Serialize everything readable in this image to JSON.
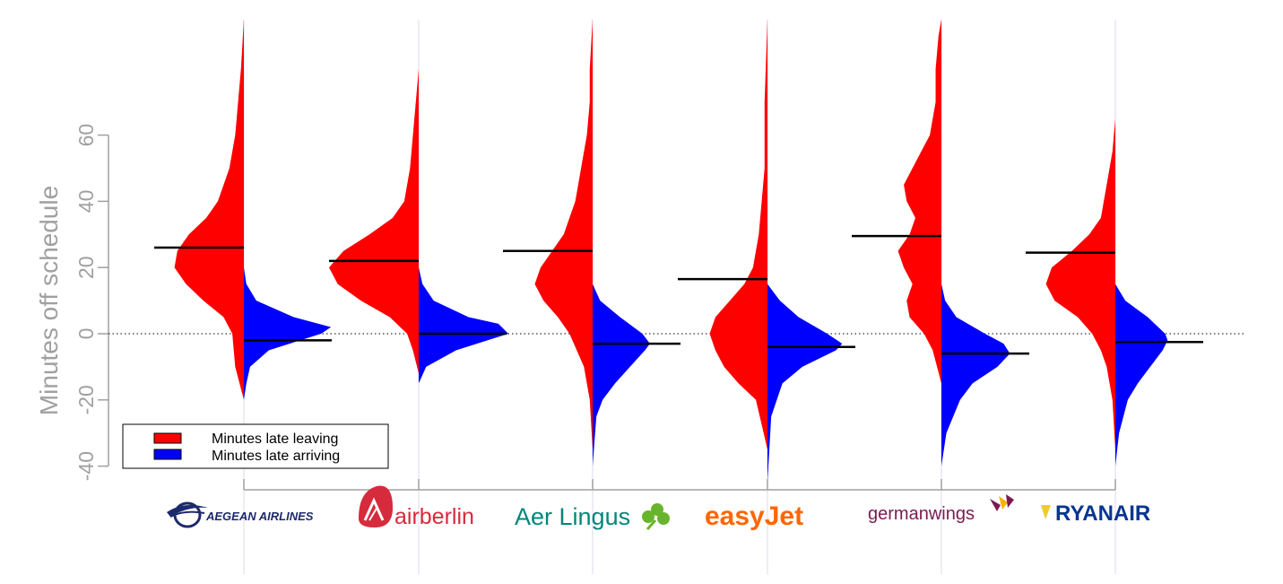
{
  "chart_data": {
    "type": "violin",
    "title": "",
    "xlabel": "",
    "ylabel": "Minutes off schedule",
    "ylim": [
      -40,
      95
    ],
    "yticks": [
      -40,
      -20,
      0,
      20,
      40,
      60
    ],
    "reference_line": 0,
    "categories": [
      "AEGEAN AIRLINES",
      "airberlin",
      "Aer Lingus",
      "easyJet",
      "germanwings",
      "RYANAIR"
    ],
    "series": [
      {
        "name": "Minutes late leaving",
        "color": "#ff0000",
        "side": "left",
        "means": [
          26,
          22,
          25,
          16.5,
          29.5,
          24.5
        ],
        "density": [
          [
            [
              -20,
              0
            ],
            [
              -10,
              3
            ],
            [
              0,
              4
            ],
            [
              5,
              7
            ],
            [
              10,
              14
            ],
            [
              15,
              20
            ],
            [
              20,
              24
            ],
            [
              25,
              23
            ],
            [
              30,
              19
            ],
            [
              35,
              13
            ],
            [
              40,
              9
            ],
            [
              45,
              7
            ],
            [
              50,
              5
            ],
            [
              60,
              3
            ],
            [
              70,
              2
            ],
            [
              80,
              1
            ],
            [
              95,
              0
            ]
          ],
          [
            [
              -12,
              0
            ],
            [
              -5,
              2
            ],
            [
              0,
              4
            ],
            [
              5,
              10
            ],
            [
              10,
              20
            ],
            [
              15,
              28
            ],
            [
              20,
              31
            ],
            [
              25,
              26
            ],
            [
              30,
              17
            ],
            [
              35,
              9
            ],
            [
              40,
              5
            ],
            [
              50,
              3
            ],
            [
              60,
              2
            ],
            [
              70,
              1
            ],
            [
              80,
              0
            ]
          ],
          [
            [
              -35,
              0
            ],
            [
              -20,
              1
            ],
            [
              -10,
              3
            ],
            [
              0,
              8
            ],
            [
              5,
              12
            ],
            [
              10,
              17
            ],
            [
              15,
              20
            ],
            [
              20,
              18
            ],
            [
              25,
              14
            ],
            [
              30,
              10
            ],
            [
              40,
              6
            ],
            [
              50,
              4
            ],
            [
              60,
              2
            ],
            [
              70,
              1
            ],
            [
              80,
              1
            ],
            [
              95,
              0
            ]
          ],
          [
            [
              -35,
              0
            ],
            [
              -20,
              4
            ],
            [
              -15,
              10
            ],
            [
              -10,
              15
            ],
            [
              -5,
              18
            ],
            [
              0,
              20
            ],
            [
              5,
              18
            ],
            [
              10,
              13
            ],
            [
              15,
              8
            ],
            [
              20,
              5
            ],
            [
              30,
              3
            ],
            [
              40,
              2
            ],
            [
              50,
              1
            ],
            [
              70,
              1
            ],
            [
              95,
              0
            ]
          ],
          [
            [
              -15,
              0
            ],
            [
              -5,
              3
            ],
            [
              0,
              6
            ],
            [
              5,
              11
            ],
            [
              10,
              12
            ],
            [
              15,
              10
            ],
            [
              20,
              13
            ],
            [
              25,
              15
            ],
            [
              30,
              11
            ],
            [
              35,
              9
            ],
            [
              40,
              12
            ],
            [
              45,
              13
            ],
            [
              50,
              10
            ],
            [
              55,
              7
            ],
            [
              60,
              4
            ],
            [
              70,
              2
            ],
            [
              80,
              2
            ],
            [
              90,
              1
            ],
            [
              95,
              0
            ]
          ],
          [
            [
              -35,
              0
            ],
            [
              -20,
              1
            ],
            [
              -10,
              3
            ],
            [
              -5,
              5
            ],
            [
              0,
              8
            ],
            [
              5,
              13
            ],
            [
              10,
              21
            ],
            [
              15,
              24
            ],
            [
              20,
              22
            ],
            [
              25,
              15
            ],
            [
              30,
              9
            ],
            [
              35,
              5
            ],
            [
              45,
              3
            ],
            [
              55,
              1
            ],
            [
              65,
              0
            ]
          ]
        ]
      },
      {
        "name": "Minutes late arriving",
        "color": "#0000ff",
        "side": "right",
        "means": [
          -2,
          0,
          -3,
          -4,
          -6,
          -2.5
        ],
        "density": [
          [
            [
              -20,
              0
            ],
            [
              -15,
              2
            ],
            [
              -10,
              5
            ],
            [
              -5,
              20
            ],
            [
              0,
              62
            ],
            [
              2,
              70
            ],
            [
              5,
              40
            ],
            [
              10,
              10
            ],
            [
              15,
              2
            ],
            [
              20,
              0
            ]
          ],
          [
            [
              -15,
              0
            ],
            [
              -10,
              6
            ],
            [
              -5,
              30
            ],
            [
              0,
              72
            ],
            [
              3,
              64
            ],
            [
              5,
              40
            ],
            [
              10,
              12
            ],
            [
              15,
              3
            ],
            [
              20,
              0
            ]
          ],
          [
            [
              -40,
              0
            ],
            [
              -25,
              3
            ],
            [
              -20,
              8
            ],
            [
              -15,
              18
            ],
            [
              -10,
              30
            ],
            [
              -5,
              42
            ],
            [
              -3,
              46
            ],
            [
              0,
              40
            ],
            [
              5,
              22
            ],
            [
              10,
              6
            ],
            [
              15,
              0
            ]
          ],
          [
            [
              -45,
              0
            ],
            [
              -25,
              3
            ],
            [
              -15,
              12
            ],
            [
              -10,
              28
            ],
            [
              -5,
              55
            ],
            [
              -3,
              60
            ],
            [
              0,
              48
            ],
            [
              5,
              25
            ],
            [
              10,
              10
            ],
            [
              15,
              0
            ]
          ],
          [
            [
              -40,
              0
            ],
            [
              -30,
              4
            ],
            [
              -20,
              15
            ],
            [
              -15,
              25
            ],
            [
              -10,
              45
            ],
            [
              -6,
              55
            ],
            [
              -3,
              50
            ],
            [
              0,
              35
            ],
            [
              5,
              12
            ],
            [
              10,
              3
            ],
            [
              15,
              0
            ]
          ],
          [
            [
              -40,
              0
            ],
            [
              -30,
              3
            ],
            [
              -20,
              10
            ],
            [
              -15,
              18
            ],
            [
              -10,
              28
            ],
            [
              -5,
              38
            ],
            [
              -2,
              42
            ],
            [
              0,
              40
            ],
            [
              5,
              26
            ],
            [
              10,
              8
            ],
            [
              15,
              0
            ]
          ]
        ]
      }
    ],
    "legend": {
      "position": "bottom-left",
      "entries": [
        "Minutes late leaving",
        "Minutes late arriving"
      ]
    }
  },
  "logos": {
    "aegean": "AEGEAN AIRLINES",
    "airberlin": "airberlin",
    "aerlingus": "Aer Lingus",
    "easyjet": "easyJet",
    "germanwings": "germanwings",
    "ryanair": "RYANAIR"
  }
}
